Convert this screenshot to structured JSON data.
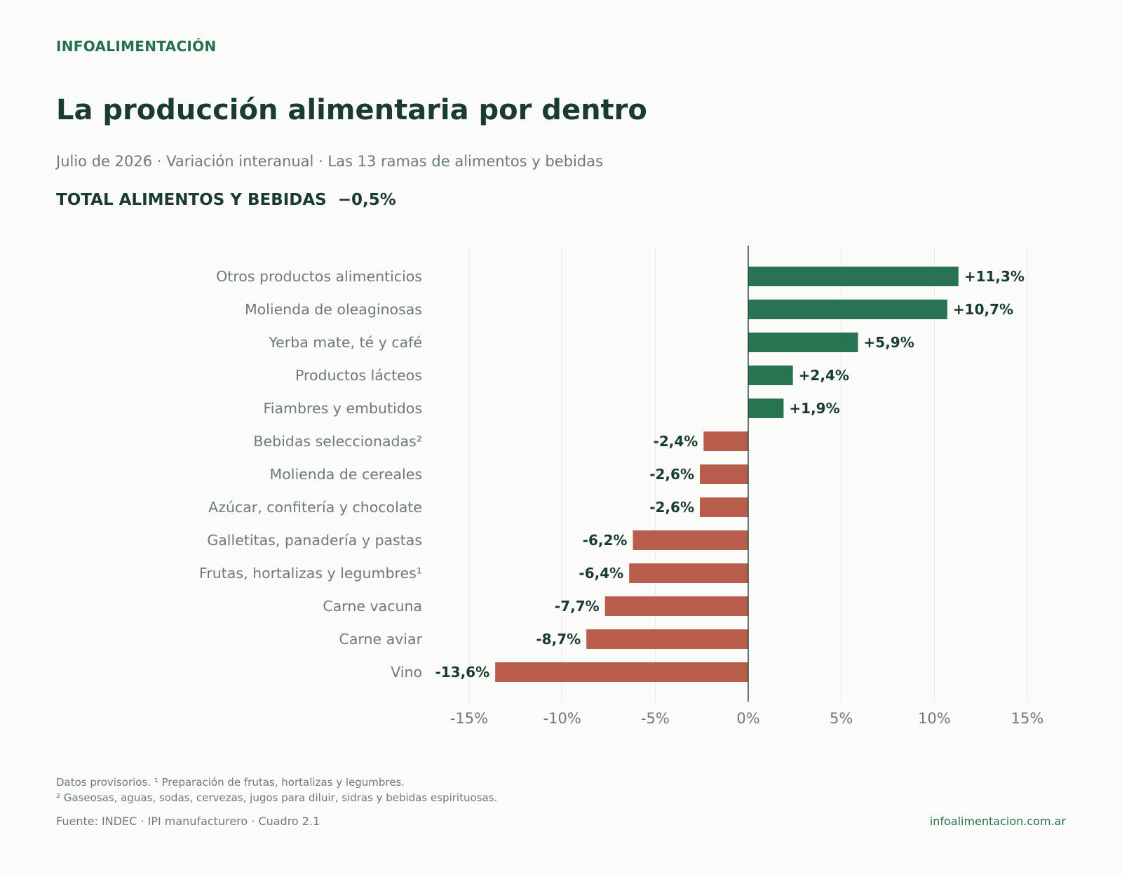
{
  "header": {
    "brand": "INFOALIMENTACIÓN",
    "title": "La producción alimentaria por dentro",
    "subtitle": "Julio de 2026 · Variación interanual · Las 13 ramas de alimentos y bebidas",
    "total": "TOTAL ALIMENTOS Y BEBIDAS  −0,5%"
  },
  "chart_data": {
    "type": "bar",
    "orientation": "horizontal",
    "categories": [
      "Otros productos alimenticios",
      "Molienda de oleaginosas",
      "Yerba mate, té y café",
      "Productos lácteos",
      "Fiambres y embutidos",
      "Bebidas seleccionadas²",
      "Molienda de cereales",
      "Azúcar, confitería y chocolate",
      "Galletitas, panadería y pastas",
      "Frutas, hortalizas y legumbres¹",
      "Carne vacuna",
      "Carne aviar",
      "Vino"
    ],
    "values": [
      11.3,
      10.7,
      5.9,
      2.4,
      1.9,
      -2.4,
      -2.6,
      -2.6,
      -6.2,
      -6.4,
      -7.7,
      -8.7,
      -13.6
    ],
    "value_labels": [
      "+11,3%",
      "+10,7%",
      "+5,9%",
      "+2,4%",
      "+1,9%",
      "-2,4%",
      "-2,6%",
      "-2,6%",
      "-6,2%",
      "-6,4%",
      "-7,7%",
      "-8,7%",
      "-13,6%"
    ],
    "xlim": [
      -15,
      15
    ],
    "xticks": [
      -15,
      -10,
      -5,
      0,
      5,
      10,
      15
    ],
    "xtick_labels": [
      "-15%",
      "-10%",
      "-5%",
      "0%",
      "5%",
      "10%",
      "15%"
    ],
    "grid": true,
    "colors": {
      "positive": "#277352",
      "negative": "#b85c4b",
      "category_label": "#6d7b75",
      "value_label": "#1a3b30",
      "grid": "#e6e8e4",
      "zero_line": "#2f4a40"
    }
  },
  "footer": {
    "note1": "Datos provisorios. ¹ Preparación de frutas, hortalizas y legumbres.",
    "note2": "² Gaseosas, aguas, sodas, cervezas, jugos para diluir, sidras y bebidas espirituosas.",
    "source": "Fuente: INDEC · IPI manufacturero · Cuadro 2.1",
    "site": "infoalimentacion.com.ar"
  }
}
